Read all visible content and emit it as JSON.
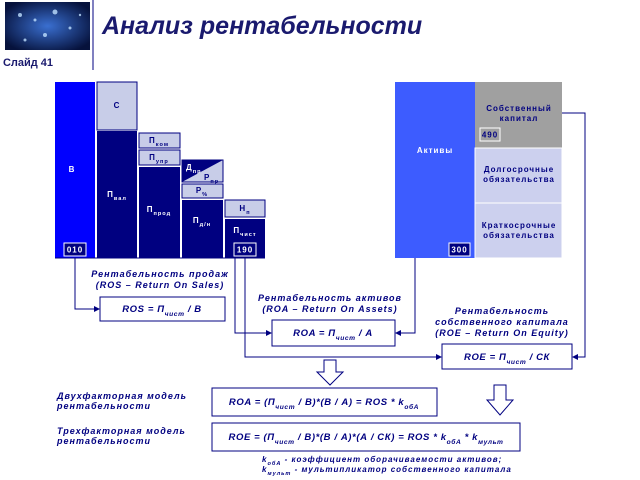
{
  "header": {
    "title": "Анализ рентабельности",
    "slide": "Слайд 41"
  },
  "left_blocks": {
    "b": "В",
    "c": "С",
    "p_val": [
      {
        "text": "П"
      },
      {
        "sub": "вал"
      }
    ],
    "p_kom": [
      {
        "text": "П"
      },
      {
        "sub": "ком"
      }
    ],
    "p_upr": [
      {
        "text": "П"
      },
      {
        "sub": "упр"
      }
    ],
    "p_prod": [
      {
        "text": "П"
      },
      {
        "sub": "прод"
      }
    ],
    "d_pr": [
      {
        "text": "Д"
      },
      {
        "sub": "пр"
      }
    ],
    "r_pr": [
      {
        "text": "Р"
      },
      {
        "sub": "пр"
      }
    ],
    "r_pct": [
      {
        "text": "Р"
      },
      {
        "sub": "%"
      }
    ],
    "p_dn": [
      {
        "text": "П"
      },
      {
        "sub": "д/н"
      }
    ],
    "n_p": [
      {
        "text": "Н"
      },
      {
        "sub": "п"
      }
    ],
    "p_chist": [
      {
        "text": "П"
      },
      {
        "sub": "чист"
      }
    ],
    "code_010": "010",
    "code_190": "190"
  },
  "balance": {
    "assets": "Активы",
    "equity": [
      "Собственный",
      "капитал"
    ],
    "code_490": "490",
    "long_term": [
      "Долгосрочные",
      "обязательства"
    ],
    "short_term": [
      "Краткосрочные",
      "обязательства"
    ],
    "code_300": "300"
  },
  "ratios": [
    {
      "title": [
        "Рентабельность продаж"
      ],
      "subtitle": "(ROS – Return On Sales)",
      "formula": [
        {
          "text": "ROS = П"
        },
        {
          "sub": "чист"
        },
        {
          "text": " / В"
        }
      ]
    },
    {
      "title": [
        "Рентабельность активов"
      ],
      "subtitle": "(ROA – Return On Assets)",
      "formula": [
        {
          "text": "ROA = П"
        },
        {
          "sub": "чист"
        },
        {
          "text": " / А"
        }
      ]
    },
    {
      "title": [
        "Рентабельность",
        "собственного капитала"
      ],
      "subtitle": "(ROE – Return On Equity)",
      "formula": [
        {
          "text": "ROE = П"
        },
        {
          "sub": "чист"
        },
        {
          "text": " / СК"
        }
      ]
    }
  ],
  "models": [
    {
      "label": [
        "Двухфакторная модель",
        "рентабельности"
      ],
      "formula": [
        {
          "text": "ROA = (П"
        },
        {
          "sub": "чист"
        },
        {
          "text": " / В)*(В / А) = ROS * k"
        },
        {
          "sub": "обА"
        }
      ]
    },
    {
      "label": [
        "Трехфакторная модель",
        "рентабельности"
      ],
      "formula": [
        {
          "text": "ROE = (П"
        },
        {
          "sub": "чист"
        },
        {
          "text": " / В)*(В / А)*(А / СК) = ROS * k"
        },
        {
          "sub": "обА"
        },
        {
          "text": " * k"
        },
        {
          "sub": "мульт"
        }
      ]
    }
  ],
  "notes": [
    [
      {
        "text": "k"
      },
      {
        "sub": "обА"
      },
      {
        "text": " - коэффициент оборачиваемости активов;"
      }
    ],
    [
      {
        "text": "k"
      },
      {
        "sub": "мульт"
      },
      {
        "text": " - мультипликатор собственного капитала"
      }
    ]
  ]
}
